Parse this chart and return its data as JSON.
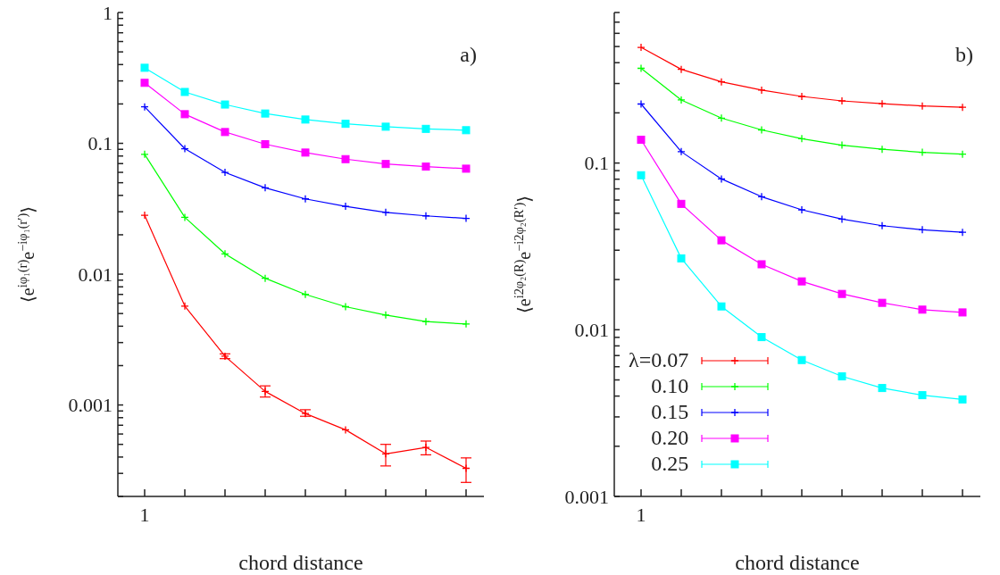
{
  "chart_data": [
    {
      "type": "line",
      "xlabel": "chord distance",
      "ylabel": "⟨e$^{iφ₁(r)}$e$^{−iφ₁(r′)}$⟩",
      "annotations": [
        "a)"
      ],
      "log": "y",
      "legend": false,
      "categories": [
        "1",
        null,
        null,
        null,
        null,
        null,
        null,
        null,
        null
      ],
      "ylim": [
        0.0002,
        1
      ],
      "yticks": [
        {
          "value": 0.0002,
          "label": null
        },
        {
          "value": 0.0003,
          "label": null
        },
        {
          "value": 0.0004,
          "label": null
        },
        {
          "value": 0.0005,
          "label": null
        },
        {
          "value": 0.0006,
          "label": null
        },
        {
          "value": 0.0007,
          "label": null
        },
        {
          "value": 0.0008,
          "label": null
        },
        {
          "value": 0.0009,
          "label": null
        },
        0.001,
        {
          "value": 0.002,
          "label": null
        },
        {
          "value": 0.003,
          "label": null
        },
        {
          "value": 0.004,
          "label": null
        },
        {
          "value": 0.005,
          "label": null
        },
        {
          "value": 0.006,
          "label": null
        },
        {
          "value": 0.007,
          "label": null
        },
        {
          "value": 0.008,
          "label": null
        },
        {
          "value": 0.009,
          "label": null
        },
        0.01,
        {
          "value": 0.02,
          "label": null
        },
        {
          "value": 0.03,
          "label": null
        },
        {
          "value": 0.04,
          "label": null
        },
        {
          "value": 0.05,
          "label": null
        },
        {
          "value": 0.06,
          "label": null
        },
        {
          "value": 0.07,
          "label": null
        },
        {
          "value": 0.08,
          "label": null
        },
        {
          "value": 0.09,
          "label": null
        },
        0.1,
        {
          "value": 0.2,
          "label": null
        },
        {
          "value": 0.3,
          "label": null
        },
        {
          "value": 0.4,
          "label": null
        },
        {
          "value": 0.5,
          "label": null
        },
        {
          "value": 0.6,
          "label": null
        },
        {
          "value": 0.7,
          "label": null
        },
        {
          "value": 0.8,
          "label": null
        },
        {
          "value": 0.9,
          "label": null
        },
        1
      ],
      "series": [
        {
          "color": "#ff0000",
          "marker": "cross",
          "values": [
            0.0282,
            0.0057,
            0.00236,
            0.00127,
            0.00086,
            0.000646,
            0.000423,
            0.000474,
            0.000328
          ],
          "errors": [
            null,
            null,
            [
              0.00226,
              0.00246
            ],
            [
              0.00115,
              0.0014
            ],
            [
              0.00082,
              0.00092
            ],
            null,
            [
              0.000342,
              0.0005
            ],
            [
              0.000416,
              0.00053
            ],
            [
              0.000256,
              0.000394
            ]
          ]
        },
        {
          "color": "#00ff00",
          "marker": "cross",
          "values": [
            0.0824,
            0.0272,
            0.0143,
            0.0093,
            0.007,
            0.00564,
            0.00487,
            0.00434,
            0.00416
          ]
        },
        {
          "color": "#0000ff",
          "marker": "cross",
          "values": [
            0.19,
            0.091,
            0.06,
            0.0457,
            0.0376,
            0.033,
            0.0297,
            0.0279,
            0.0267
          ]
        },
        {
          "color": "#ff00ff",
          "marker": "square",
          "values": [
            0.29,
            0.167,
            0.122,
            0.0985,
            0.085,
            0.0757,
            0.0695,
            0.0664,
            0.064
          ]
        },
        {
          "color": "#00ffff",
          "marker": "square",
          "values": [
            0.378,
            0.247,
            0.198,
            0.169,
            0.152,
            0.141,
            0.134,
            0.129,
            0.126
          ]
        }
      ]
    },
    {
      "type": "line",
      "xlabel": "chord distance",
      "ylabel": "⟨e$^{i2φ₂(R)}$e$^{−i2φ₂(R′)}$⟩",
      "annotations": [
        "b)"
      ],
      "log": "y",
      "legend": "bottom left",
      "categories": [
        "1",
        null,
        null,
        null,
        null,
        null,
        null,
        null,
        null
      ],
      "ylim": [
        0.001,
        0.8
      ],
      "yticks": [
        0.001,
        {
          "value": 0.002,
          "label": null
        },
        {
          "value": 0.003,
          "label": null
        },
        {
          "value": 0.004,
          "label": null
        },
        {
          "value": 0.005,
          "label": null
        },
        {
          "value": 0.006,
          "label": null
        },
        {
          "value": 0.007,
          "label": null
        },
        {
          "value": 0.008,
          "label": null
        },
        {
          "value": 0.009,
          "label": null
        },
        0.01,
        {
          "value": 0.02,
          "label": null
        },
        {
          "value": 0.03,
          "label": null
        },
        {
          "value": 0.04,
          "label": null
        },
        {
          "value": 0.05,
          "label": null
        },
        {
          "value": 0.06,
          "label": null
        },
        {
          "value": 0.07,
          "label": null
        },
        {
          "value": 0.08,
          "label": null
        },
        {
          "value": 0.09,
          "label": null
        },
        0.1,
        {
          "value": 0.2,
          "label": null
        },
        {
          "value": 0.3,
          "label": null
        },
        {
          "value": 0.4,
          "label": null
        },
        {
          "value": 0.5,
          "label": null
        },
        {
          "value": 0.6,
          "label": null
        },
        {
          "value": 0.7,
          "label": null
        },
        {
          "value": 0.8,
          "label": null
        }
      ],
      "series": [
        {
          "name": "λ=0.07",
          "color": "#ff0000",
          "marker": "cross",
          "values": [
            0.494,
            0.365,
            0.307,
            0.274,
            0.251,
            0.236,
            0.227,
            0.22,
            0.216
          ]
        },
        {
          "name": "0.10",
          "color": "#00ff00",
          "marker": "cross",
          "values": [
            0.37,
            0.239,
            0.186,
            0.158,
            0.14,
            0.128,
            0.121,
            0.116,
            0.113
          ]
        },
        {
          "name": "0.15",
          "color": "#0000ff",
          "marker": "cross",
          "values": [
            0.226,
            0.117,
            0.0803,
            0.0628,
            0.0524,
            0.0461,
            0.0421,
            0.0398,
            0.0384
          ]
        },
        {
          "name": "0.20",
          "color": "#ff00ff",
          "marker": "square",
          "values": [
            0.138,
            0.0569,
            0.0344,
            0.0247,
            0.0195,
            0.0164,
            0.0145,
            0.0132,
            0.0127
          ]
        },
        {
          "name": "0.25",
          "color": "#00ffff",
          "marker": "square",
          "values": [
            0.0845,
            0.0268,
            0.0138,
            0.00903,
            0.00658,
            0.00525,
            0.00447,
            0.00405,
            0.00382
          ]
        }
      ]
    }
  ]
}
